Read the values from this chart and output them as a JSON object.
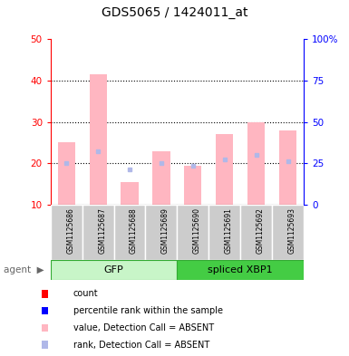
{
  "title": "GDS5065 / 1424011_at",
  "samples": [
    "GSM1125686",
    "GSM1125687",
    "GSM1125688",
    "GSM1125689",
    "GSM1125690",
    "GSM1125691",
    "GSM1125692",
    "GSM1125693"
  ],
  "absent_values": [
    25,
    41.5,
    15.5,
    23,
    19.5,
    27,
    30,
    28
  ],
  "absent_ranks": [
    20,
    23,
    18.5,
    20,
    19.5,
    21,
    22,
    20.5
  ],
  "ylim_left": [
    10,
    50
  ],
  "ylim_right": [
    0,
    100
  ],
  "yticks_left": [
    10,
    20,
    30,
    40,
    50
  ],
  "yticks_left_labels": [
    "10",
    "20",
    "30",
    "40",
    "50"
  ],
  "yticks_right": [
    0,
    25,
    50,
    75,
    100
  ],
  "yticks_right_labels": [
    "0",
    "25",
    "50",
    "75",
    "100%"
  ],
  "bar_bottom": 10,
  "absent_bar_color": "#FFB6C1",
  "absent_rank_color": "#b0b8e8",
  "axis_color_left": "#FF0000",
  "axis_color_right": "#0000FF",
  "gfp_light_color": "#c8f5c8",
  "gfp_dark_color": "#44dd44",
  "xbp1_color": "#44cc44",
  "sample_box_color": "#cccccc",
  "legend_items": [
    {
      "label": "count",
      "color": "#FF0000"
    },
    {
      "label": "percentile rank within the sample",
      "color": "#0000FF"
    },
    {
      "label": "value, Detection Call = ABSENT",
      "color": "#FFB6C1"
    },
    {
      "label": "rank, Detection Call = ABSENT",
      "color": "#b0b8e8"
    }
  ]
}
